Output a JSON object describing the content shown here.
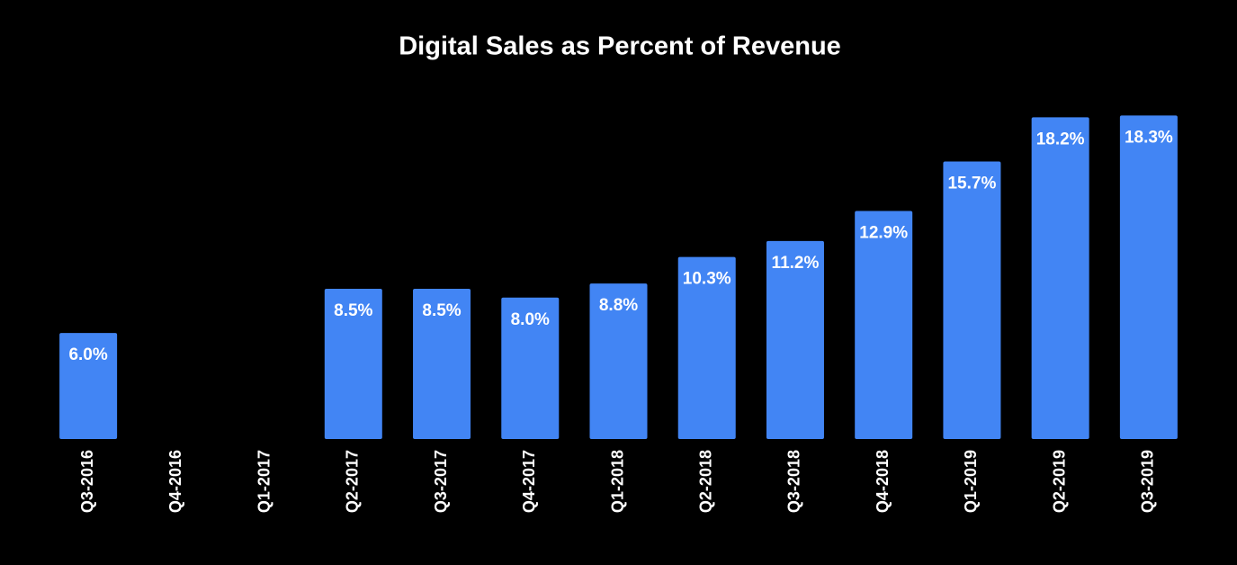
{
  "chart_data": {
    "type": "bar",
    "title": "Digital Sales as Percent of Revenue",
    "categories": [
      "Q3-2016",
      "Q4-2016",
      "Q1-2017",
      "Q2-2017",
      "Q3-2017",
      "Q4-2017",
      "Q1-2018",
      "Q2-2018",
      "Q3-2018",
      "Q4-2018",
      "Q1-2019",
      "Q2-2019",
      "Q3-2019"
    ],
    "values": [
      6.0,
      null,
      null,
      8.5,
      8.5,
      8.0,
      8.8,
      10.3,
      11.2,
      12.9,
      15.7,
      18.2,
      18.3
    ],
    "value_labels": [
      "6.0%",
      null,
      null,
      "8.5%",
      "8.5%",
      "8.0%",
      "8.8%",
      "10.3%",
      "11.2%",
      "12.9%",
      "15.7%",
      "18.2%",
      "18.3%"
    ],
    "color": "#4285f4",
    "ylim": [
      0,
      20
    ]
  }
}
